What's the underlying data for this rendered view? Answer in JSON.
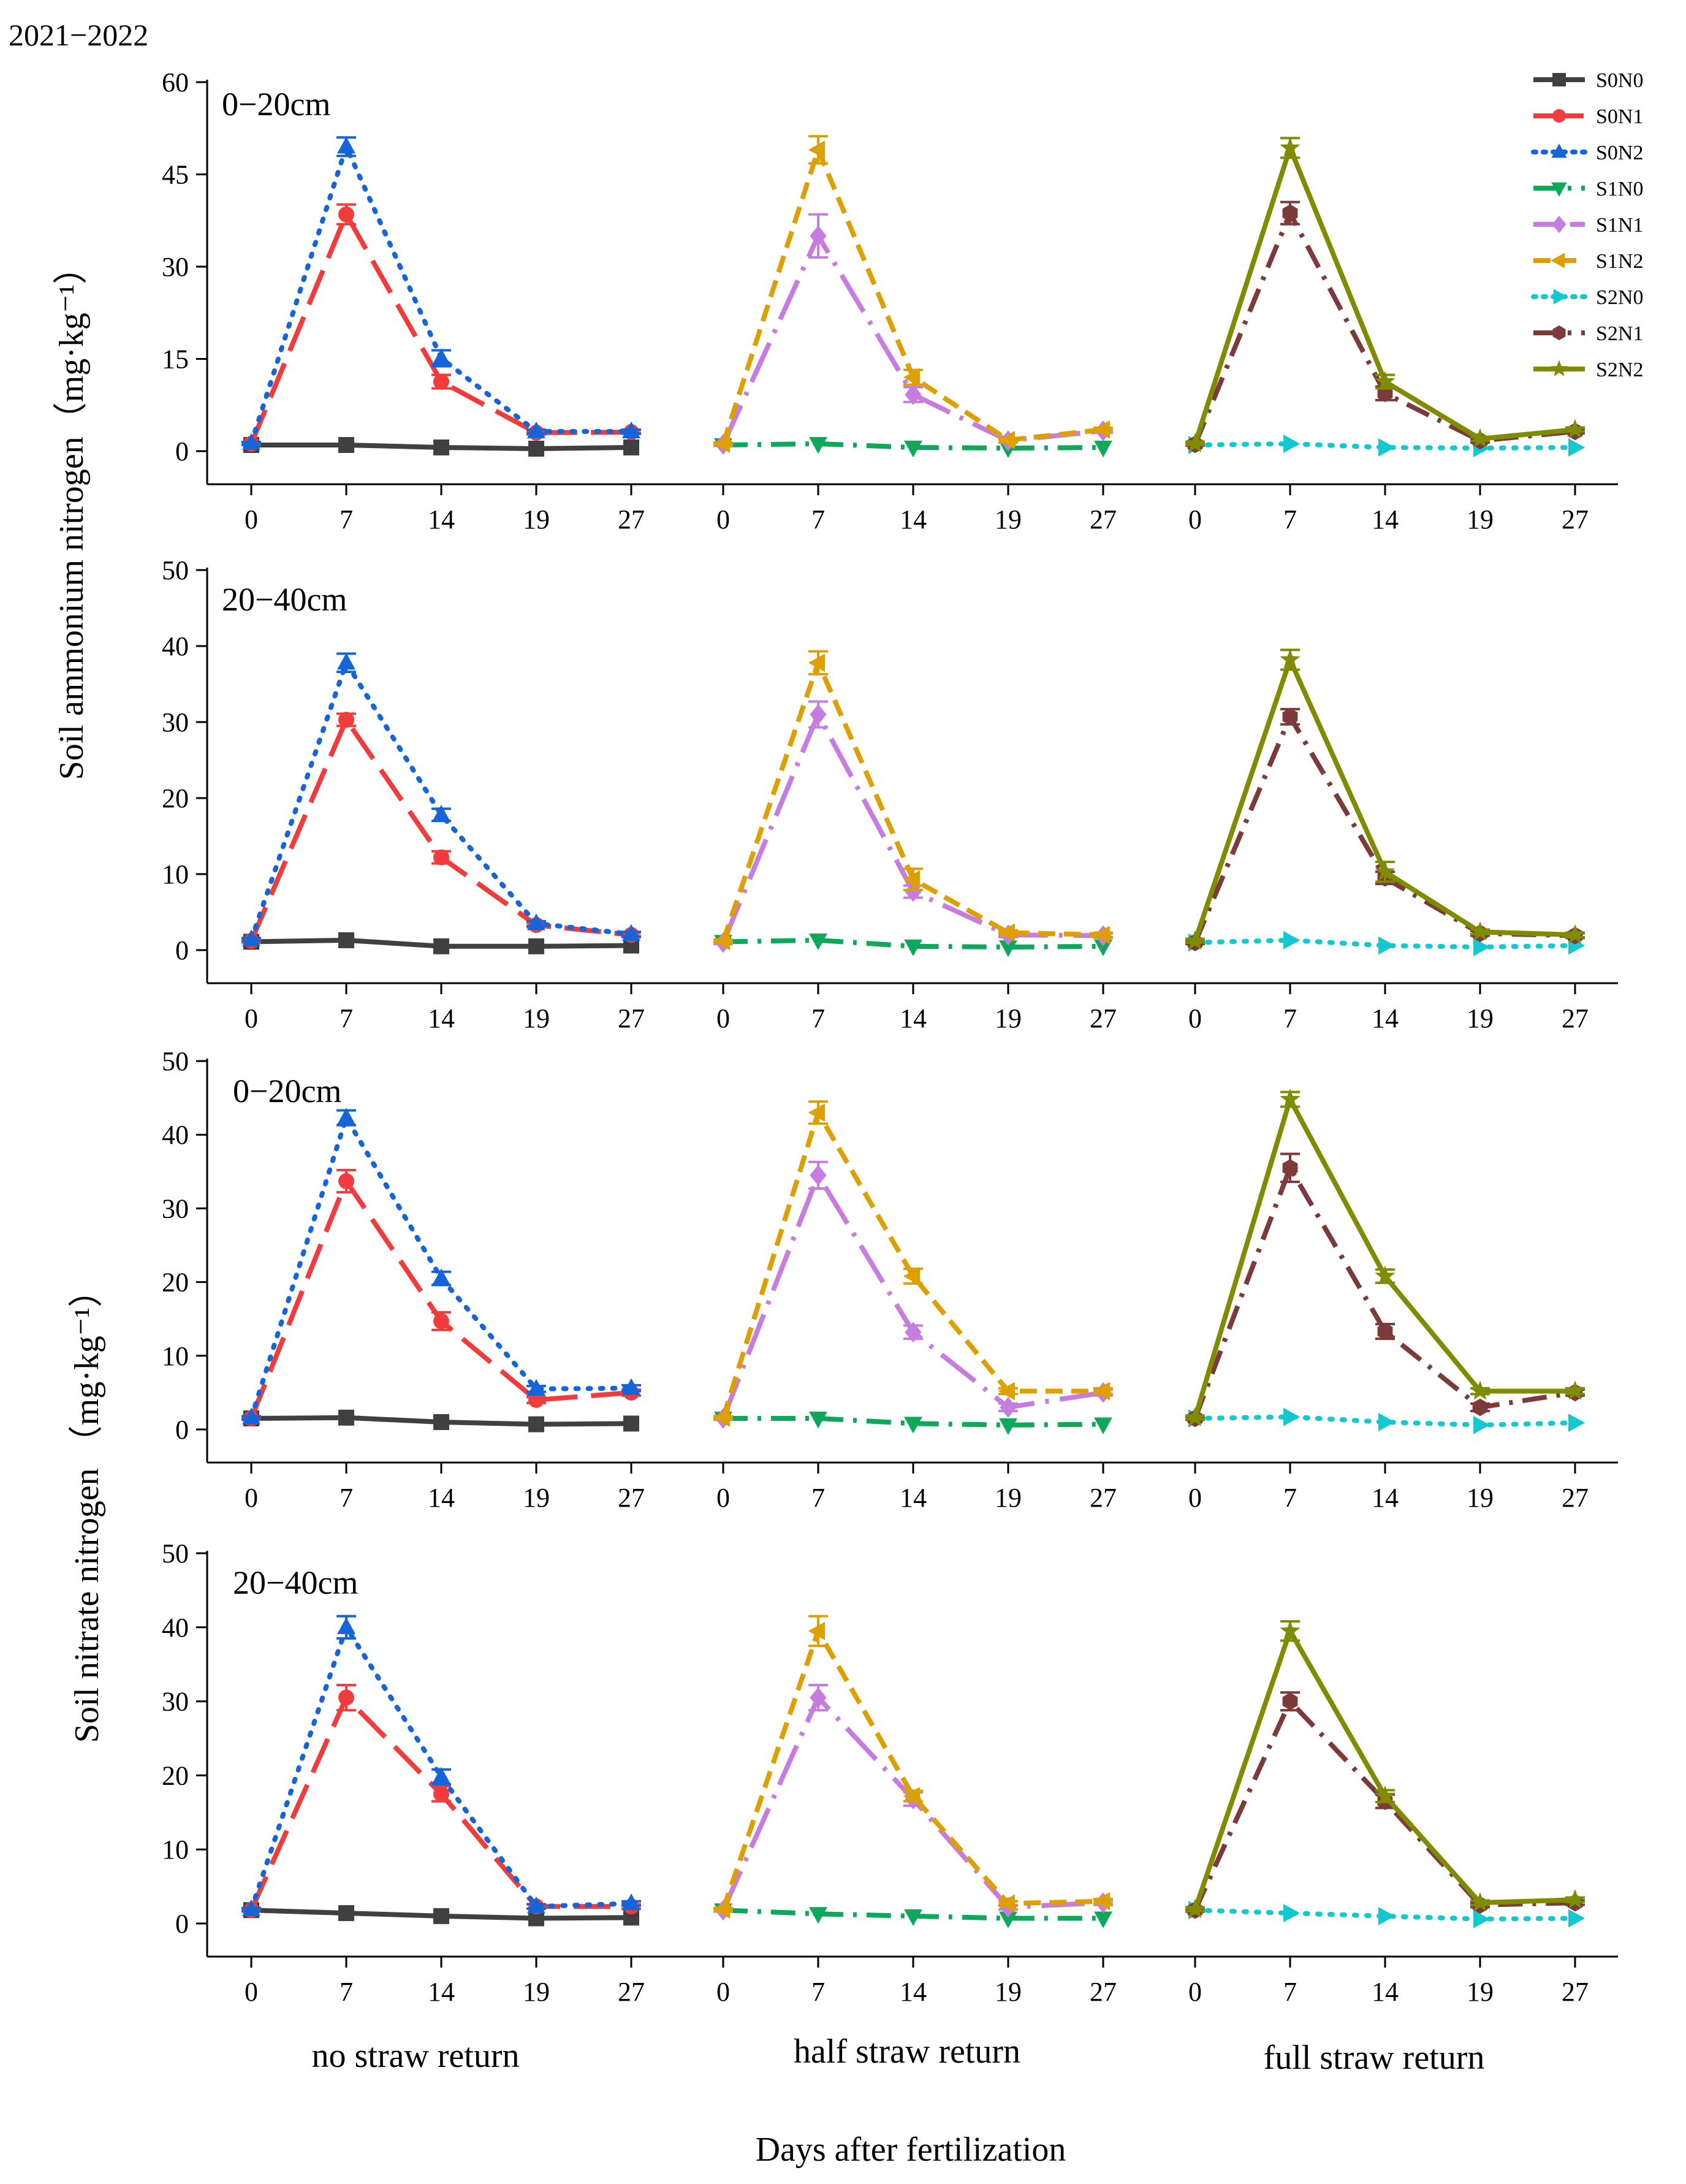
{
  "chart_data": {
    "type": "line",
    "year_label": "2021−2022",
    "xlabel": "Days after fertilization",
    "ylabel_top": "Soil ammonium nitrogen（mg·kg⁻¹）",
    "ylabel_bottom": "Soil nitrate nitrogen （mg·kg⁻¹）",
    "categories": [
      "0",
      "7",
      "14",
      "19",
      "27"
    ],
    "groups": [
      "no straw return",
      "half straw return",
      "full straw return"
    ],
    "legend": [
      {
        "name": "S0N0",
        "color": "#404040",
        "dash": "solid",
        "marker": "square"
      },
      {
        "name": "S0N1",
        "color": "#f03c3c",
        "dash": "long-dash",
        "marker": "circle"
      },
      {
        "name": "S0N2",
        "color": "#1565d8",
        "dash": "dot",
        "marker": "triangle-up"
      },
      {
        "name": "S1N0",
        "color": "#0da85a",
        "dash": "dash-dot",
        "marker": "triangle-down"
      },
      {
        "name": "S1N1",
        "color": "#c77de0",
        "dash": "long-dash-dot",
        "marker": "diamond"
      },
      {
        "name": "S1N2",
        "color": "#dea000",
        "dash": "dash",
        "marker": "triangle-left"
      },
      {
        "name": "S2N0",
        "color": "#14c8d2",
        "dash": "dot",
        "marker": "triangle-right"
      },
      {
        "name": "S2N1",
        "color": "#7c3a3a",
        "dash": "dash-dot",
        "marker": "hexagon"
      },
      {
        "name": "S2N2",
        "color": "#7f8c00",
        "dash": "solid",
        "marker": "star"
      }
    ],
    "panels": [
      {
        "label": "0−20cm",
        "ylim": [
          0,
          60
        ],
        "yticks": [
          "0",
          "15",
          "30",
          "45",
          "60"
        ],
        "groups": [
          {
            "series": [
              {
                "name": "S0N0",
                "values": [
                  1.0,
                  1.0,
                  0.6,
                  0.4,
                  0.6
                ],
                "err": [
                  0.1,
                  0.1,
                  0.1,
                  0.1,
                  0.1
                ]
              },
              {
                "name": "S0N1",
                "values": [
                  1.2,
                  38.5,
                  11.3,
                  3.0,
                  3.1
                ],
                "err": [
                  0.2,
                  1.6,
                  1.1,
                  0.3,
                  0.3
                ]
              },
              {
                "name": "S0N2",
                "values": [
                  1.3,
                  49.5,
                  15.1,
                  3.2,
                  3.2
                ],
                "err": [
                  0.2,
                  1.5,
                  1.3,
                  0.3,
                  0.3
                ]
              }
            ]
          },
          {
            "series": [
              {
                "name": "S1N0",
                "values": [
                  1.0,
                  1.2,
                  0.6,
                  0.5,
                  0.6
                ],
                "err": [
                  0.1,
                  0.1,
                  0.1,
                  0.1,
                  0.1
                ]
              },
              {
                "name": "S1N1",
                "values": [
                  1.1,
                  35.0,
                  9.2,
                  1.7,
                  3.3
                ],
                "err": [
                  0.2,
                  3.5,
                  1.2,
                  0.3,
                  0.3
                ]
              },
              {
                "name": "S1N2",
                "values": [
                  1.2,
                  49.0,
                  12.0,
                  1.8,
                  3.5
                ],
                "err": [
                  0.2,
                  2.2,
                  1.2,
                  0.3,
                  0.3
                ]
              }
            ]
          },
          {
            "series": [
              {
                "name": "S2N0",
                "values": [
                  1.0,
                  1.2,
                  0.6,
                  0.5,
                  0.6
                ],
                "err": [
                  0.1,
                  0.1,
                  0.1,
                  0.1,
                  0.1
                ]
              },
              {
                "name": "S2N1",
                "values": [
                  1.1,
                  38.7,
                  9.4,
                  1.7,
                  3.2
                ],
                "err": [
                  0.2,
                  1.8,
                  1.1,
                  0.3,
                  0.3
                ]
              },
              {
                "name": "S2N2",
                "values": [
                  1.2,
                  49.3,
                  11.3,
                  2.0,
                  3.5
                ],
                "err": [
                  0.2,
                  1.6,
                  1.1,
                  0.3,
                  0.3
                ]
              }
            ]
          }
        ]
      },
      {
        "label": "20−40cm",
        "ylim": [
          0,
          50
        ],
        "yticks": [
          "0",
          "10",
          "20",
          "30",
          "40",
          "50"
        ],
        "groups": [
          {
            "series": [
              {
                "name": "S0N0",
                "values": [
                  1.1,
                  1.3,
                  0.5,
                  0.5,
                  0.6
                ],
                "err": [
                  0.1,
                  0.1,
                  0.1,
                  0.1,
                  0.1
                ]
              },
              {
                "name": "S0N1",
                "values": [
                  1.2,
                  30.3,
                  12.2,
                  3.3,
                  2.0
                ],
                "err": [
                  0.2,
                  0.8,
                  0.8,
                  0.3,
                  0.3
                ]
              },
              {
                "name": "S0N2",
                "values": [
                  1.4,
                  37.8,
                  17.8,
                  3.5,
                  2.1
                ],
                "err": [
                  0.2,
                  1.2,
                  0.8,
                  0.3,
                  0.3
                ]
              }
            ]
          },
          {
            "series": [
              {
                "name": "S1N0",
                "values": [
                  1.1,
                  1.3,
                  0.5,
                  0.4,
                  0.5
                ],
                "err": [
                  0.1,
                  0.1,
                  0.1,
                  0.1,
                  0.1
                ]
              },
              {
                "name": "S1N1",
                "values": [
                  1.0,
                  31.0,
                  7.7,
                  2.0,
                  1.9
                ],
                "err": [
                  0.2,
                  1.7,
                  0.8,
                  0.3,
                  0.3
                ]
              },
              {
                "name": "S1N2",
                "values": [
                  1.2,
                  37.8,
                  9.3,
                  2.3,
                  2.0
                ],
                "err": [
                  0.2,
                  1.5,
                  1.4,
                  0.3,
                  0.3
                ]
              }
            ]
          },
          {
            "series": [
              {
                "name": "S2N0",
                "values": [
                  1.0,
                  1.3,
                  0.6,
                  0.4,
                  0.6
                ],
                "err": [
                  0.1,
                  0.1,
                  0.1,
                  0.1,
                  0.1
                ]
              },
              {
                "name": "S2N1",
                "values": [
                  1.0,
                  30.7,
                  9.5,
                  2.2,
                  1.9
                ],
                "err": [
                  0.2,
                  1.0,
                  0.8,
                  0.3,
                  0.3
                ]
              },
              {
                "name": "S2N2",
                "values": [
                  1.2,
                  38.2,
                  10.3,
                  2.4,
                  2.0
                ],
                "err": [
                  0.2,
                  1.3,
                  1.3,
                  0.3,
                  0.3
                ]
              }
            ]
          }
        ]
      },
      {
        "label": "0−20cm",
        "ylim": [
          0,
          50
        ],
        "yticks": [
          "0",
          "10",
          "20",
          "30",
          "40",
          "50"
        ],
        "groups": [
          {
            "series": [
              {
                "name": "S0N0",
                "values": [
                  1.5,
                  1.6,
                  1.0,
                  0.7,
                  0.8
                ],
                "err": [
                  0.1,
                  0.1,
                  0.1,
                  0.1,
                  0.1
                ]
              },
              {
                "name": "S0N1",
                "values": [
                  1.5,
                  33.7,
                  14.7,
                  4.0,
                  5.0
                ],
                "err": [
                  0.2,
                  1.5,
                  1.2,
                  0.4,
                  0.4
                ]
              },
              {
                "name": "S0N2",
                "values": [
                  1.6,
                  42.3,
                  20.5,
                  5.5,
                  5.6
                ],
                "err": [
                  0.2,
                  1.0,
                  0.9,
                  0.4,
                  0.4
                ]
              }
            ]
          },
          {
            "series": [
              {
                "name": "S1N0",
                "values": [
                  1.5,
                  1.5,
                  0.8,
                  0.6,
                  0.7
                ],
                "err": [
                  0.1,
                  0.1,
                  0.1,
                  0.1,
                  0.1
                ]
              },
              {
                "name": "S1N1",
                "values": [
                  1.5,
                  34.5,
                  13.2,
                  3.0,
                  5.0
                ],
                "err": [
                  0.2,
                  1.8,
                  0.9,
                  0.5,
                  0.4
                ]
              },
              {
                "name": "S1N2",
                "values": [
                  1.6,
                  43.0,
                  20.8,
                  5.2,
                  5.2
                ],
                "err": [
                  0.2,
                  1.5,
                  1.0,
                  0.4,
                  0.4
                ]
              }
            ]
          },
          {
            "series": [
              {
                "name": "S2N0",
                "values": [
                  1.5,
                  1.7,
                  1.0,
                  0.6,
                  0.9
                ],
                "err": [
                  0.1,
                  0.1,
                  0.1,
                  0.1,
                  0.1
                ]
              },
              {
                "name": "S2N1",
                "values": [
                  1.5,
                  35.5,
                  13.3,
                  3.0,
                  5.0
                ],
                "err": [
                  0.2,
                  1.9,
                  1.0,
                  0.5,
                  0.4
                ]
              },
              {
                "name": "S2N2",
                "values": [
                  1.6,
                  44.8,
                  20.8,
                  5.2,
                  5.2
                ],
                "err": [
                  0.2,
                  1.0,
                  0.9,
                  0.4,
                  0.4
                ]
              }
            ]
          }
        ]
      },
      {
        "label": "20−40cm",
        "ylim": [
          0,
          50
        ],
        "yticks": [
          "0",
          "10",
          "20",
          "30",
          "40",
          "50"
        ],
        "groups": [
          {
            "series": [
              {
                "name": "S0N0",
                "values": [
                  1.8,
                  1.4,
                  1.0,
                  0.7,
                  0.8
                ],
                "err": [
                  0.1,
                  0.1,
                  0.1,
                  0.1,
                  0.1
                ]
              },
              {
                "name": "S0N1",
                "values": [
                  1.8,
                  30.5,
                  17.5,
                  2.3,
                  2.3
                ],
                "err": [
                  0.2,
                  1.7,
                  1.0,
                  0.3,
                  0.3
                ]
              },
              {
                "name": "S0N2",
                "values": [
                  1.9,
                  40.0,
                  19.8,
                  2.3,
                  2.7
                ],
                "err": [
                  0.2,
                  1.5,
                  1.0,
                  0.3,
                  0.3
                ]
              }
            ]
          },
          {
            "series": [
              {
                "name": "S1N0",
                "values": [
                  1.8,
                  1.3,
                  1.0,
                  0.7,
                  0.7
                ],
                "err": [
                  0.1,
                  0.1,
                  0.1,
                  0.1,
                  0.1
                ]
              },
              {
                "name": "S1N1",
                "values": [
                  1.8,
                  30.5,
                  16.8,
                  2.2,
                  2.8
                ],
                "err": [
                  0.2,
                  1.7,
                  0.9,
                  0.3,
                  0.3
                ]
              },
              {
                "name": "S1N2",
                "values": [
                  1.9,
                  39.5,
                  17.2,
                  2.7,
                  3.0
                ],
                "err": [
                  0.2,
                  2.0,
                  0.7,
                  0.3,
                  0.3
                ]
              }
            ]
          },
          {
            "series": [
              {
                "name": "S2N0",
                "values": [
                  1.8,
                  1.4,
                  1.0,
                  0.6,
                  0.7
                ],
                "err": [
                  0.1,
                  0.1,
                  0.1,
                  0.1,
                  0.1
                ]
              },
              {
                "name": "S2N1",
                "values": [
                  1.8,
                  30.0,
                  16.5,
                  2.5,
                  2.8
                ],
                "err": [
                  0.2,
                  1.2,
                  0.9,
                  0.3,
                  0.3
                ]
              },
              {
                "name": "S2N2",
                "values": [
                  1.9,
                  39.5,
                  17.2,
                  2.8,
                  3.2
                ],
                "err": [
                  0.2,
                  1.3,
                  0.8,
                  0.3,
                  0.3
                ]
              }
            ]
          }
        ]
      }
    ]
  }
}
